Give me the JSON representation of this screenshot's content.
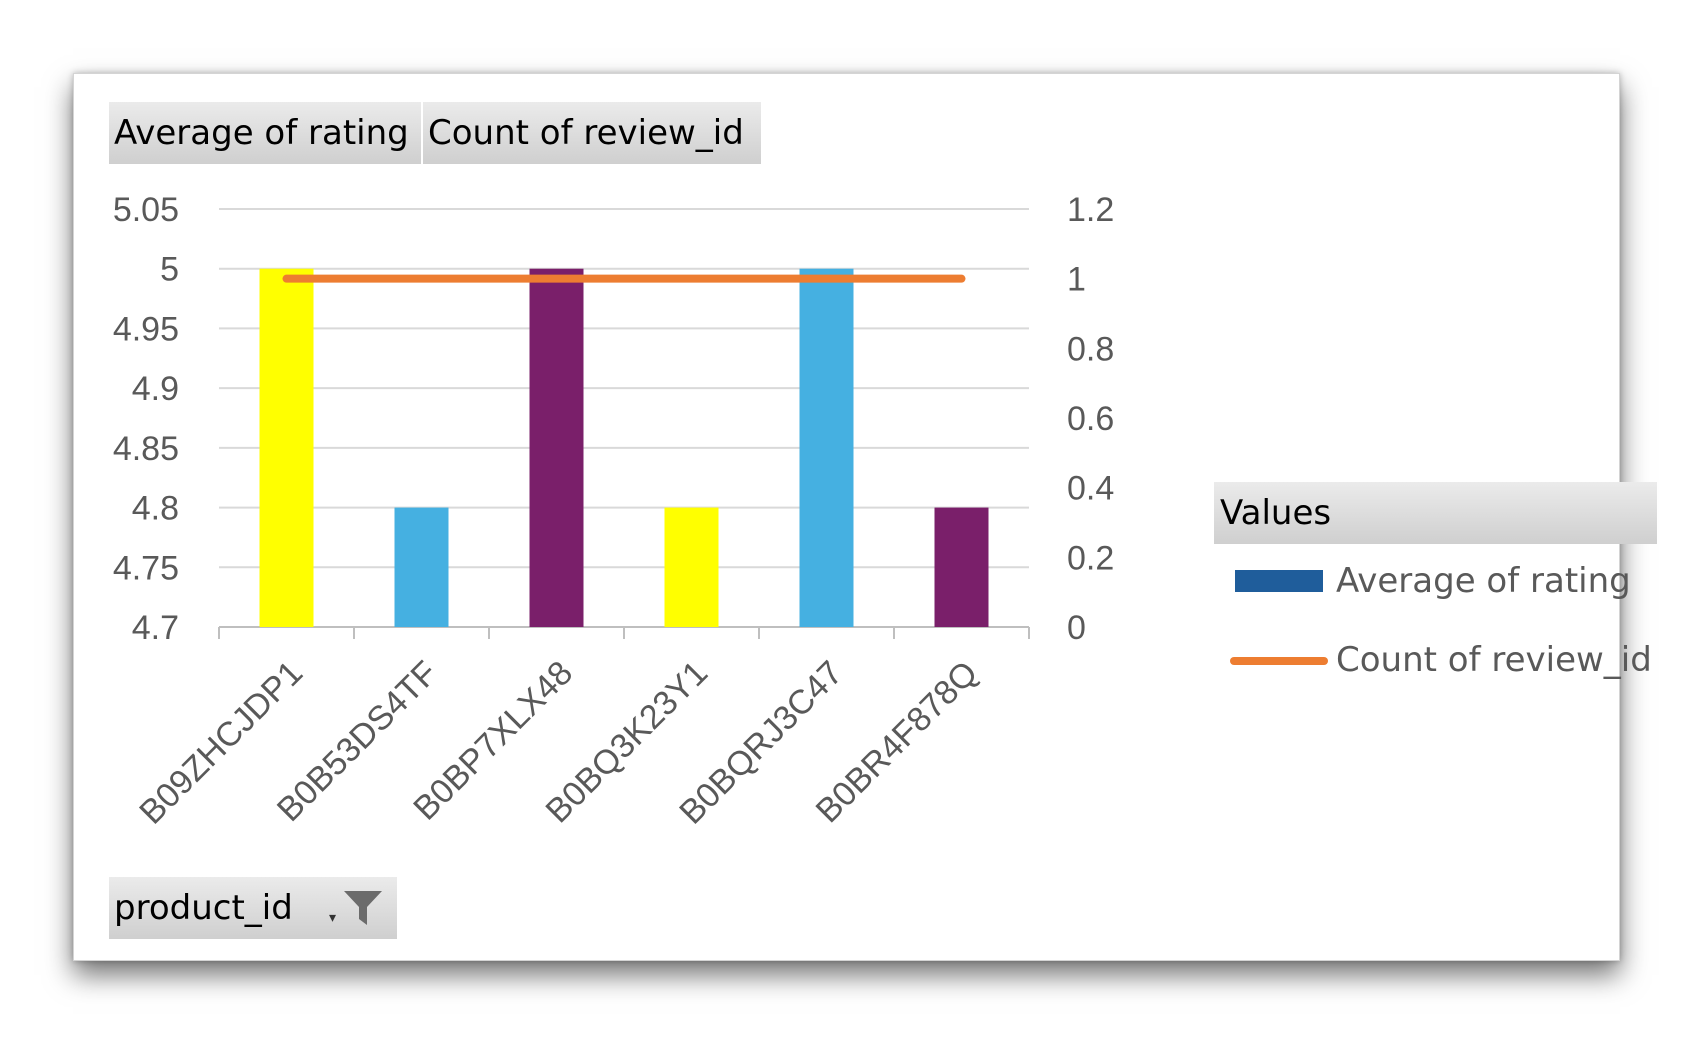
{
  "field_buttons": {
    "value1": "Average  of rating",
    "value2": "Count of review_id",
    "axis": "product_id"
  },
  "legend": {
    "title": "Values",
    "items": [
      "Average of rating",
      "Count of review_id"
    ]
  },
  "icons": {
    "filter": "filter-funnel-icon",
    "dropdown": "dropdown-arrow-icon"
  },
  "colors": {
    "yellow": "#ffff00",
    "light_blue": "#45b0e1",
    "purple": "#7a1f6a",
    "legend_bar": "#1f5d9b",
    "line": "#ed7d31"
  },
  "chart_data": {
    "type": "bar",
    "categories": [
      "B09ZHCJDP1",
      "B0B53DS4TF",
      "B0BP7XLX48",
      "B0BQ3K23Y1",
      "B0BQRJ3C47",
      "B0BR4F878Q"
    ],
    "series": [
      {
        "name": "Average of rating",
        "type": "bar",
        "axis": "left",
        "values": [
          5,
          4.8,
          5,
          4.8,
          5,
          4.8
        ],
        "colors": [
          "#ffff00",
          "#45b0e1",
          "#7a1f6a",
          "#ffff00",
          "#45b0e1",
          "#7a1f6a"
        ]
      },
      {
        "name": "Count of review_id",
        "type": "line",
        "axis": "right",
        "values": [
          1,
          1,
          1,
          1,
          1,
          1
        ],
        "color": "#ed7d31"
      }
    ],
    "y_left": {
      "min": 4.7,
      "max": 5.05,
      "ticks": [
        "4.7",
        "4.75",
        "4.8",
        "4.85",
        "4.9",
        "4.95",
        "5",
        "5.05"
      ]
    },
    "y_right": {
      "min": 0,
      "max": 1.2,
      "ticks": [
        "0",
        "0.2",
        "0.4",
        "0.6",
        "0.8",
        "1",
        "1.2"
      ]
    },
    "grid": true,
    "legend_position": "right"
  }
}
